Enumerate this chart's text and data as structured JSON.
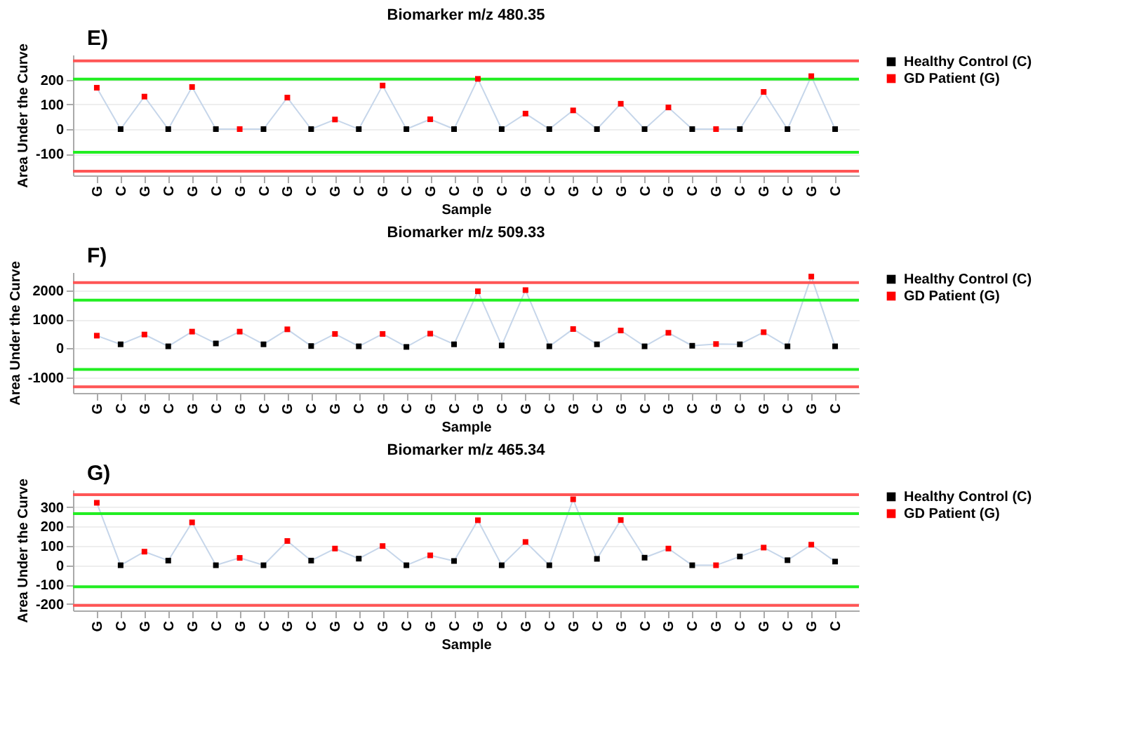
{
  "chart_data": [
    {
      "type": "line",
      "title": "Biomarker m/z 480.35",
      "annotations": [
        "E)"
      ],
      "xlabel": "Sample",
      "ylabel": "Area Under the Curve",
      "categories": [
        "G",
        "C",
        "G",
        "C",
        "G",
        "C",
        "G",
        "C",
        "G",
        "C",
        "G",
        "C",
        "G",
        "C",
        "G",
        "C",
        "G",
        "C",
        "G",
        "C",
        "G",
        "C",
        "G",
        "C",
        "G",
        "C",
        "G",
        "C",
        "G",
        "C",
        "G",
        "C"
      ],
      "series": [
        {
          "type": "line",
          "marker": "none",
          "color": "#c6d6ea",
          "values": [
            168,
            0,
            132,
            0,
            171,
            0,
            0,
            0,
            128,
            0,
            39,
            0,
            177,
            0,
            40,
            0,
            204,
            0,
            63,
            0,
            76,
            0,
            103,
            0,
            88,
            0,
            0,
            0,
            151,
            0,
            215,
            0
          ]
        },
        {
          "type": "scatter",
          "name": "Healthy Control (C)",
          "color": "#000000",
          "values": [
            null,
            0,
            null,
            0,
            null,
            0,
            null,
            0,
            null,
            0,
            null,
            0,
            null,
            0,
            null,
            0,
            null,
            0,
            null,
            0,
            null,
            0,
            null,
            0,
            null,
            0,
            null,
            0,
            null,
            0,
            null,
            0
          ]
        },
        {
          "type": "scatter",
          "name": "GD Patient (G)",
          "color": "#ff0000",
          "values": [
            168,
            null,
            132,
            null,
            171,
            null,
            0,
            null,
            128,
            null,
            39,
            null,
            177,
            null,
            40,
            null,
            204,
            null,
            63,
            null,
            76,
            null,
            103,
            null,
            88,
            null,
            0,
            null,
            151,
            null,
            215,
            null
          ]
        }
      ],
      "ylim": [
        -188,
        302
      ],
      "yticks": [
        -100,
        0,
        100,
        200
      ],
      "ref_lines": [
        {
          "axis": "y",
          "value": 277,
          "color": "#ff5555"
        },
        {
          "axis": "y",
          "value": 203,
          "color": "#22ee22"
        },
        {
          "axis": "y",
          "value": -94,
          "color": "#22ee22"
        },
        {
          "axis": "y",
          "value": -171,
          "color": "#ff5555"
        }
      ],
      "grid": "y",
      "legend": "right",
      "marker": "square",
      "line_style": "solid"
    },
    {
      "type": "line",
      "title": "Biomarker m/z 509.33",
      "annotations": [
        "F)"
      ],
      "xlabel": "Sample",
      "ylabel": "Area Under the Curve",
      "categories": [
        "G",
        "C",
        "G",
        "C",
        "G",
        "C",
        "G",
        "C",
        "G",
        "C",
        "G",
        "C",
        "G",
        "C",
        "G",
        "C",
        "G",
        "C",
        "G",
        "C",
        "G",
        "C",
        "G",
        "C",
        "G",
        "C",
        "G",
        "C",
        "G",
        "C",
        "G",
        "C"
      ],
      "series": [
        {
          "type": "line",
          "marker": "none",
          "color": "#c6d6ea",
          "values": [
            440,
            140,
            480,
            70,
            580,
            170,
            580,
            140,
            660,
            80,
            500,
            70,
            500,
            50,
            510,
            140,
            1980,
            100,
            2020,
            70,
            670,
            140,
            620,
            70,
            540,
            90,
            150,
            140,
            560,
            70,
            2490,
            70
          ]
        },
        {
          "type": "scatter",
          "name": "Healthy Control (C)",
          "color": "#000000",
          "values": [
            null,
            140,
            null,
            70,
            null,
            170,
            null,
            140,
            null,
            80,
            null,
            70,
            null,
            50,
            null,
            140,
            null,
            100,
            null,
            70,
            null,
            140,
            null,
            70,
            null,
            90,
            null,
            140,
            null,
            70,
            null,
            70
          ]
        },
        {
          "type": "scatter",
          "name": "GD Patient (G)",
          "color": "#ff0000",
          "values": [
            440,
            null,
            480,
            null,
            580,
            null,
            580,
            null,
            660,
            null,
            500,
            null,
            500,
            null,
            510,
            null,
            1980,
            null,
            2020,
            null,
            670,
            null,
            620,
            null,
            540,
            null,
            150,
            null,
            560,
            null,
            2490,
            null
          ]
        }
      ],
      "ylim": [
        -1547,
        2640
      ],
      "yticks": [
        -1000,
        0,
        1000,
        2000
      ],
      "ref_lines": [
        {
          "axis": "y",
          "value": 2280,
          "color": "#ff5555"
        },
        {
          "axis": "y",
          "value": 1675,
          "color": "#22ee22"
        },
        {
          "axis": "y",
          "value": -733,
          "color": "#22ee22"
        },
        {
          "axis": "y",
          "value": -1337,
          "color": "#ff5555"
        }
      ],
      "grid": "y",
      "legend": "right",
      "marker": "square",
      "line_style": "solid"
    },
    {
      "type": "line",
      "title": "Biomarker m/z 465.34",
      "annotations": [
        "G)"
      ],
      "xlabel": "Sample",
      "ylabel": "Area Under the Curve",
      "categories": [
        "G",
        "C",
        "G",
        "C",
        "G",
        "C",
        "G",
        "C",
        "G",
        "C",
        "G",
        "C",
        "G",
        "C",
        "G",
        "C",
        "G",
        "C",
        "G",
        "C",
        "G",
        "C",
        "G",
        "C",
        "G",
        "C",
        "G",
        "C",
        "G",
        "C",
        "G",
        "C"
      ],
      "series": [
        {
          "type": "line",
          "marker": "none",
          "color": "#c6d6ea",
          "values": [
            322,
            0,
            70,
            24,
            221,
            0,
            38,
            0,
            125,
            24,
            86,
            34,
            99,
            0,
            51,
            22,
            232,
            0,
            120,
            0,
            340,
            33,
            233,
            39,
            86,
            0,
            0,
            45,
            91,
            26,
            106,
            19
          ]
        },
        {
          "type": "scatter",
          "name": "Healthy Control (C)",
          "color": "#000000",
          "values": [
            null,
            0,
            null,
            24,
            null,
            0,
            null,
            0,
            null,
            24,
            null,
            34,
            null,
            0,
            null,
            22,
            null,
            0,
            null,
            0,
            null,
            33,
            null,
            39,
            null,
            0,
            null,
            45,
            null,
            26,
            null,
            19
          ]
        },
        {
          "type": "scatter",
          "name": "GD Patient (G)",
          "color": "#ff0000",
          "values": [
            322,
            null,
            70,
            null,
            221,
            null,
            38,
            null,
            125,
            null,
            86,
            null,
            99,
            null,
            51,
            null,
            232,
            null,
            120,
            null,
            340,
            null,
            233,
            null,
            86,
            null,
            0,
            null,
            91,
            null,
            106,
            null
          ]
        }
      ],
      "ylim": [
        -233,
        389
      ],
      "yticks": [
        -200,
        -100,
        0,
        100,
        200,
        300
      ],
      "ref_lines": [
        {
          "axis": "y",
          "value": 364,
          "color": "#ff5555"
        },
        {
          "axis": "y",
          "value": 266,
          "color": "#22ee22"
        },
        {
          "axis": "y",
          "value": -111,
          "color": "#22ee22"
        },
        {
          "axis": "y",
          "value": -207,
          "color": "#ff5555"
        }
      ],
      "grid": "y",
      "legend": "right",
      "marker": "square",
      "line_style": "solid"
    }
  ]
}
